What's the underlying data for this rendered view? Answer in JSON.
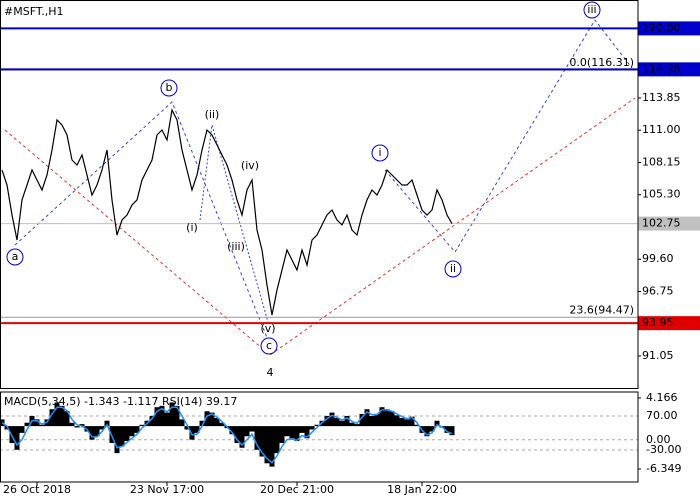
{
  "chart_data": [
    {
      "type": "line",
      "title": "#MSFT.,H1",
      "color": "#000000",
      "categories": [
        null,
        null,
        null,
        null,
        null,
        null,
        null,
        "26 Oct 2018",
        null,
        null,
        null,
        null,
        null,
        null,
        null,
        null,
        null,
        null,
        null,
        null,
        null,
        null,
        null,
        null,
        null,
        null,
        null,
        null,
        null,
        null,
        null,
        null,
        null,
        "23 Nov 17:00",
        null,
        null,
        null,
        null,
        null,
        null,
        null,
        null,
        null,
        null,
        null,
        null,
        null,
        null,
        null,
        null,
        null,
        null,
        null,
        null,
        null,
        null,
        null,
        null,
        null,
        "20 Dec 21:00",
        null,
        null,
        null,
        null,
        null,
        null,
        null,
        null,
        null,
        null,
        null,
        null,
        null,
        null,
        null,
        null,
        null,
        null,
        null,
        null,
        null,
        null,
        null,
        null,
        "18 Jan 22:00",
        null,
        null,
        null,
        null,
        null,
        null
      ],
      "values": [
        107.49,
        106.16,
        103.51,
        101.3,
        104.84,
        106.16,
        107.49,
        106.6,
        105.72,
        107.04,
        109.25,
        111.91,
        111.46,
        110.58,
        108.37,
        107.93,
        108.81,
        107.04,
        105.28,
        106.16,
        107.49,
        109.25,
        104.84,
        101.74,
        103.07,
        103.51,
        104.39,
        104.84,
        106.6,
        107.49,
        108.37,
        110.58,
        111.02,
        110.14,
        112.79,
        111.91,
        109.25,
        107.49,
        105.72,
        107.04,
        109.25,
        111.02,
        110.58,
        109.7,
        108.81,
        107.93,
        106.6,
        104.84,
        103.51,
        105.72,
        106.6,
        102.18,
        100.42,
        97.32,
        94.67,
        96.88,
        98.65,
        100.42,
        99.53,
        98.65,
        100.42,
        99.09,
        101.3,
        101.74,
        102.63,
        103.51,
        103.95,
        103.07,
        102.63,
        103.51,
        102.18,
        101.74,
        103.51,
        104.84,
        105.72,
        105.28,
        106.16,
        107.49,
        107.04,
        106.6,
        106.16,
        106.16,
        106.6,
        105.28,
        103.95,
        103.51,
        103.95,
        105.72,
        104.84,
        103.51,
        102.75
      ],
      "ylim": [
        88.22,
        122.51
      ],
      "yticks": [
        91.05,
        96.75,
        {
          "value": 99.6,
          "label": "99.60"
        },
        {
          "value": 105.3,
          "label": "105.30"
        },
        108.15,
        {
          "value": 111,
          "label": "111.00"
        },
        113.85
      ],
      "levels": [
        {
          "value": 120,
          "label": "120.00",
          "color": "#0000cc"
        },
        {
          "value": 116.38,
          "label": "116.38",
          "color": "#0000cc"
        },
        {
          "value": 102.75,
          "label": "102.75",
          "color": "#c0c0c0"
        },
        {
          "value": 93.95,
          "label": "93.95",
          "color": "#e00000"
        }
      ],
      "fib_levels": [
        {
          "value": 116.31,
          "label": "0.0(116.31)"
        },
        {
          "value": 94.47,
          "label": "23.6(94.47)"
        }
      ],
      "wave_labels": [
        {
          "text": "a",
          "color": "#0000cc"
        },
        {
          "text": "b",
          "color": "#0000cc"
        },
        {
          "text": "c",
          "color": "#0000cc"
        },
        {
          "text": "i",
          "color": "#0000cc"
        },
        {
          "text": "ii",
          "color": "#0000cc"
        },
        {
          "text": "iii",
          "color": "#0000cc"
        },
        {
          "text": "(i)",
          "color": "#dd0000"
        },
        {
          "text": "(ii)",
          "color": "#dd0000"
        },
        {
          "text": "(iii)",
          "color": "#dd0000"
        },
        {
          "text": "(iv)",
          "color": "#dd0000"
        },
        {
          "text": "(v)",
          "color": "#dd0000"
        },
        {
          "text": "4",
          "color": "#a0401a"
        }
      ]
    },
    {
      "type": "macd",
      "title": "MACD(5,34,5) -1.343 -1.117 RSI(14) 39.17",
      "ylim": [
        -8.27,
        5.05
      ],
      "yticks": [
        4.166,
        -6.349
      ],
      "y2lim": [
        -124.1,
        140.6
      ],
      "y2ticks": [
        {
          "value": 70,
          "label": "70.00"
        },
        {
          "value": 0,
          "label": "0.00"
        },
        {
          "value": -30,
          "label": "-30.00"
        }
      ],
      "series": [
        {
          "type": "bar",
          "color": "#000000",
          "values": [
            1.0,
            -0.5,
            -2.5,
            -3.5,
            -1.0,
            0.5,
            1.5,
            1.0,
            0.2,
            1.0,
            2.5,
            3.5,
            3.0,
            2.2,
            0.5,
            -0.2,
            0.3,
            -0.8,
            -2.0,
            -1.5,
            -0.5,
            0.8,
            -2.5,
            -4.0,
            -3.0,
            -2.2,
            -1.5,
            -1.0,
            0.2,
            0.8,
            1.5,
            2.8,
            3.0,
            2.0,
            3.5,
            3.0,
            1.0,
            -0.5,
            -2.0,
            -1.0,
            0.8,
            2.2,
            2.0,
            1.2,
            0.5,
            -0.3,
            -1.2,
            -2.5,
            -3.2,
            -1.5,
            -0.8,
            -3.5,
            -4.5,
            -5.5,
            -6.0,
            -4.0,
            -2.5,
            -1.5,
            -1.8,
            -2.2,
            -1.0,
            -1.8,
            -0.5,
            0.2,
            0.8,
            1.5,
            2.0,
            1.2,
            0.8,
            1.5,
            0.5,
            0.3,
            1.8,
            2.5,
            1.5,
            1.8,
            2.8,
            2.5,
            2.2,
            1.6,
            1.2,
            1.0,
            1.4,
            0.2,
            -1.0,
            -1.5,
            -0.8,
            0.8,
            -0.2,
            -1.0,
            -1.343
          ]
        },
        {
          "type": "line",
          "color": "#1e90ff",
          "values": [
            0.5,
            0.0,
            -1.5,
            -2.8,
            -2.0,
            -0.5,
            0.8,
            0.8,
            0.3,
            0.6,
            1.8,
            2.8,
            2.8,
            2.3,
            1.0,
            0.2,
            0.0,
            -0.5,
            -1.6,
            -1.6,
            -0.8,
            0.2,
            -1.5,
            -3.2,
            -3.0,
            -2.4,
            -1.8,
            -1.2,
            -0.3,
            0.4,
            1.1,
            2.2,
            2.6,
            2.1,
            2.8,
            2.8,
            1.5,
            0.2,
            -1.3,
            -1.2,
            0.0,
            1.5,
            1.8,
            1.3,
            0.7,
            -0.1,
            -0.9,
            -2.0,
            -2.8,
            -2.0,
            -1.2,
            -2.8,
            -3.9,
            -4.8,
            -5.4,
            -4.4,
            -3.0,
            -2.0,
            -1.9,
            -2.1,
            -1.4,
            -1.6,
            -0.9,
            -0.2,
            0.5,
            1.1,
            1.6,
            1.3,
            0.9,
            1.2,
            0.7,
            0.4,
            1.3,
            2.1,
            1.7,
            1.7,
            2.4,
            2.4,
            2.2,
            1.8,
            1.4,
            1.1,
            1.3,
            0.5,
            -0.6,
            -1.3,
            -1.0,
            0.2,
            -0.1,
            -0.8,
            -1.117
          ]
        }
      ]
    }
  ]
}
